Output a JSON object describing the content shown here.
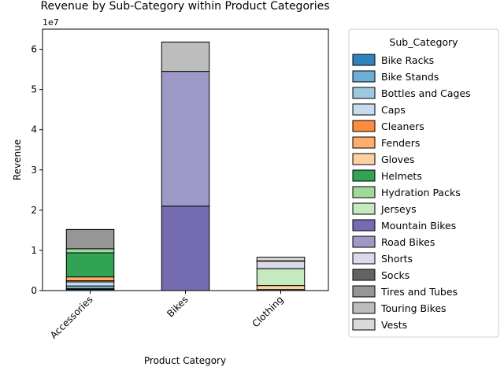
{
  "chart_data": {
    "type": "bar",
    "stacked": true,
    "title": "Revenue by Sub-Category within Product Categories",
    "xlabel": "Product Category",
    "ylabel": "Revenue",
    "scale_label": "1e7",
    "categories": [
      "Accessories",
      "Bikes",
      "Clothing"
    ],
    "ylim": [
      0,
      65000000
    ],
    "yticks": [
      0,
      10000000,
      20000000,
      30000000,
      40000000,
      50000000,
      60000000
    ],
    "ytick_labels": [
      "0",
      "1",
      "2",
      "3",
      "4",
      "5",
      "6"
    ],
    "legend": {
      "title": "Sub_Category",
      "placement": "outside-right"
    },
    "series": [
      {
        "name": "Bike Racks",
        "color": "#3182bd",
        "values": [
          300000,
          0,
          0
        ]
      },
      {
        "name": "Bike Stands",
        "color": "#6baed6",
        "values": [
          250000,
          0,
          0
        ]
      },
      {
        "name": "Bottles and Cages",
        "color": "#9ecae1",
        "values": [
          600000,
          0,
          0
        ]
      },
      {
        "name": "Caps",
        "color": "#c6dbef",
        "values": [
          1000000,
          0,
          250000
        ]
      },
      {
        "name": "Cleaners",
        "color": "#fd8d3c",
        "values": [
          300000,
          0,
          0
        ]
      },
      {
        "name": "Fenders",
        "color": "#fdae6b",
        "values": [
          950000,
          0,
          0
        ]
      },
      {
        "name": "Gloves",
        "color": "#fdd0a2",
        "values": [
          0,
          0,
          1000000
        ]
      },
      {
        "name": "Helmets",
        "color": "#31a354",
        "values": [
          6000000,
          0,
          0
        ]
      },
      {
        "name": "Hydration Packs",
        "color": "#a1d99b",
        "values": [
          1000000,
          0,
          0
        ]
      },
      {
        "name": "Jerseys",
        "color": "#c7e9c0",
        "values": [
          0,
          0,
          4200000
        ]
      },
      {
        "name": "Mountain Bikes",
        "color": "#756bb1",
        "values": [
          0,
          21000000,
          0
        ]
      },
      {
        "name": "Road Bikes",
        "color": "#9e9ac8",
        "values": [
          0,
          33500000,
          0
        ]
      },
      {
        "name": "Shorts",
        "color": "#dadaeb",
        "values": [
          0,
          0,
          1900000
        ]
      },
      {
        "name": "Socks",
        "color": "#636363",
        "values": [
          0,
          0,
          50000
        ]
      },
      {
        "name": "Tires and Tubes",
        "color": "#969696",
        "values": [
          4800000,
          0,
          0
        ]
      },
      {
        "name": "Touring Bikes",
        "color": "#bdbdbd",
        "values": [
          0,
          7300000,
          0
        ]
      },
      {
        "name": "Vests",
        "color": "#d9d9d9",
        "values": [
          0,
          0,
          900000
        ]
      }
    ]
  }
}
